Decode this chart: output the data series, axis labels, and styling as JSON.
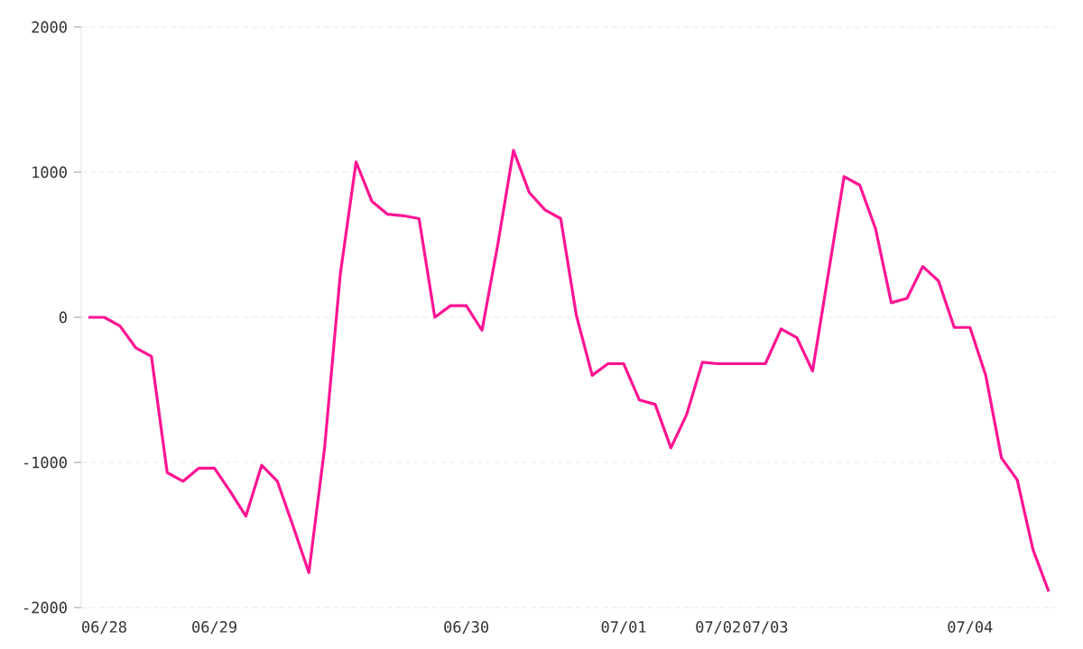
{
  "chart_data": {
    "type": "line",
    "categories": [
      null,
      "06/28",
      null,
      null,
      null,
      null,
      null,
      null,
      "06/29",
      null,
      null,
      null,
      null,
      null,
      null,
      null,
      null,
      null,
      null,
      null,
      null,
      null,
      null,
      null,
      "06/30",
      null,
      null,
      null,
      null,
      null,
      null,
      null,
      null,
      null,
      "07/01",
      null,
      null,
      null,
      null,
      null,
      "07/02",
      null,
      null,
      "07/03",
      null,
      null,
      null,
      null,
      null,
      null,
      null,
      null,
      null,
      null,
      null,
      null,
      "07/04",
      null,
      null,
      null,
      null,
      null
    ],
    "series": [
      {
        "color": "#ff1493",
        "values": [
          0,
          0,
          -60,
          -210,
          -270,
          -1070,
          -1130,
          -1040,
          -1040,
          -1200,
          -1370,
          -1020,
          -1130,
          -1440,
          -1760,
          -900,
          300,
          1070,
          800,
          710,
          700,
          680,
          0,
          80,
          80,
          -90,
          500,
          1150,
          860,
          740,
          680,
          10,
          -400,
          -320,
          -320,
          -570,
          -600,
          -900,
          -670,
          -310,
          -320,
          -320,
          -320,
          -320,
          -80,
          -140,
          -370,
          300,
          970,
          910,
          610,
          100,
          130,
          350,
          250,
          -70,
          -70,
          -400,
          -970,
          -1120,
          -1600,
          -1890
        ]
      }
    ],
    "ylim": [
      -2000,
      2000
    ],
    "yticks": [
      -2000,
      -1000,
      0,
      1000,
      2000
    ],
    "grid": "y",
    "marker": "none",
    "line_style": "solid"
  }
}
